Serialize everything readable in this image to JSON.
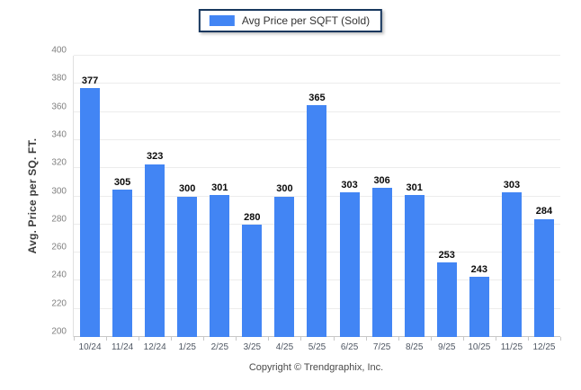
{
  "legend": {
    "label": "Avg Price per SQFT (Sold)",
    "swatch_color": "#4285f4",
    "border_color": "#17375e"
  },
  "y_axis": {
    "title": "Avg. Price per SQ. FT."
  },
  "footer": {
    "text": "Copyright © Trendgraphix, Inc."
  },
  "chart_data": {
    "type": "bar",
    "title": "Avg Price per SQFT (Sold)",
    "categories": [
      "10/24",
      "11/24",
      "12/24",
      "1/25",
      "2/25",
      "3/25",
      "4/25",
      "5/25",
      "6/25",
      "7/25",
      "8/25",
      "9/25",
      "10/25",
      "11/25",
      "12/25"
    ],
    "series": [
      {
        "name": "Avg Price per SQFT (Sold)",
        "values": [
          377,
          305,
          323,
          300,
          301,
          280,
          300,
          365,
          303,
          306,
          301,
          253,
          243,
          303,
          284
        ]
      }
    ],
    "xlabel": "",
    "ylabel": "Avg. Price per SQ. FT.",
    "ylim": [
      200,
      400
    ],
    "ytick_step": 20,
    "grid": true,
    "legend_position": "top",
    "bar_color": "#4285f4",
    "value_labels": true
  }
}
